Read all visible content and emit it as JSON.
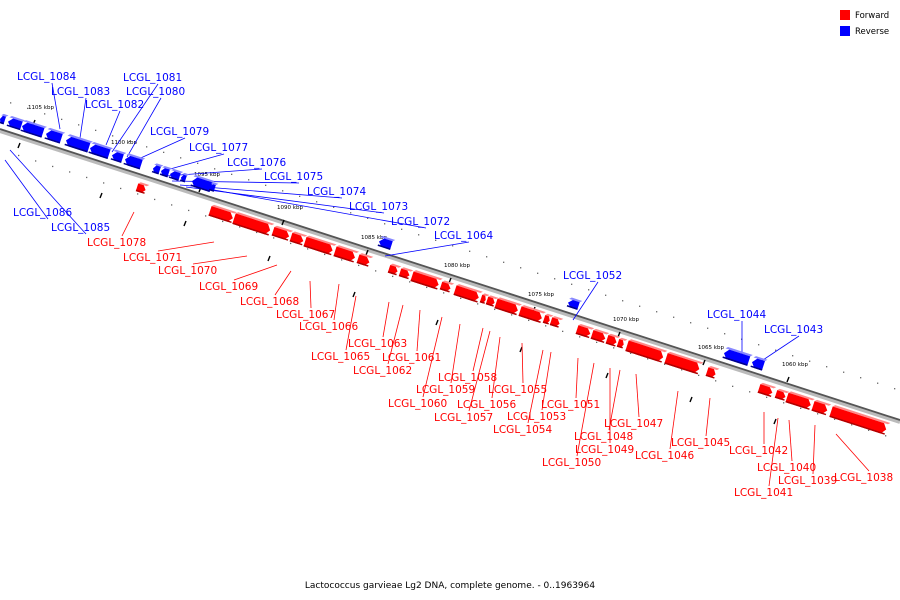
{
  "legend": [
    {
      "label": "Forward",
      "color": "#ff0000"
    },
    {
      "label": "Reverse",
      "color": "#0000ff"
    }
  ],
  "caption": "Lactococcus garvieae Lg2 DNA, complete genome. - 0..1963964",
  "ticks": [
    "1105 kbp",
    "1100 kbp",
    "1095 kbp",
    "1090 kbp",
    "1085 kbp",
    "1080 kbp",
    "1075 kbp",
    "1070 kbp",
    "1065 kbp",
    "1060 kbp"
  ],
  "genes": [
    {
      "name": "LCGL_1084",
      "strand": "reverse"
    },
    {
      "name": "LCGL_1083",
      "strand": "reverse"
    },
    {
      "name": "LCGL_1082",
      "strand": "reverse"
    },
    {
      "name": "LCGL_1081",
      "strand": "reverse"
    },
    {
      "name": "LCGL_1080",
      "strand": "reverse"
    },
    {
      "name": "LCGL_1079",
      "strand": "reverse"
    },
    {
      "name": "LCGL_1077",
      "strand": "reverse"
    },
    {
      "name": "LCGL_1076",
      "strand": "reverse"
    },
    {
      "name": "LCGL_1075",
      "strand": "reverse"
    },
    {
      "name": "LCGL_1074",
      "strand": "reverse"
    },
    {
      "name": "LCGL_1073",
      "strand": "reverse"
    },
    {
      "name": "LCGL_1072",
      "strand": "reverse"
    },
    {
      "name": "LCGL_1064",
      "strand": "reverse"
    },
    {
      "name": "LCGL_1052",
      "strand": "reverse"
    },
    {
      "name": "LCGL_1044",
      "strand": "reverse"
    },
    {
      "name": "LCGL_1043",
      "strand": "reverse"
    },
    {
      "name": "LCGL_1086",
      "strand": "reverse"
    },
    {
      "name": "LCGL_1085",
      "strand": "reverse"
    },
    {
      "name": "LCGL_1078",
      "strand": "forward"
    },
    {
      "name": "LCGL_1071",
      "strand": "forward"
    },
    {
      "name": "LCGL_1070",
      "strand": "forward"
    },
    {
      "name": "LCGL_1069",
      "strand": "forward"
    },
    {
      "name": "LCGL_1068",
      "strand": "forward"
    },
    {
      "name": "LCGL_1067",
      "strand": "forward"
    },
    {
      "name": "LCGL_1066",
      "strand": "forward"
    },
    {
      "name": "LCGL_1065",
      "strand": "forward"
    },
    {
      "name": "LCGL_1063",
      "strand": "forward"
    },
    {
      "name": "LCGL_1062",
      "strand": "forward"
    },
    {
      "name": "LCGL_1061",
      "strand": "forward"
    },
    {
      "name": "LCGL_1060",
      "strand": "forward"
    },
    {
      "name": "LCGL_1059",
      "strand": "forward"
    },
    {
      "name": "LCGL_1058",
      "strand": "forward"
    },
    {
      "name": "LCGL_1057",
      "strand": "forward"
    },
    {
      "name": "LCGL_1056",
      "strand": "forward"
    },
    {
      "name": "LCGL_1055",
      "strand": "forward"
    },
    {
      "name": "LCGL_1054",
      "strand": "forward"
    },
    {
      "name": "LCGL_1053",
      "strand": "forward"
    },
    {
      "name": "LCGL_1051",
      "strand": "forward"
    },
    {
      "name": "LCGL_1050",
      "strand": "forward"
    },
    {
      "name": "LCGL_1049",
      "strand": "forward"
    },
    {
      "name": "LCGL_1048",
      "strand": "forward"
    },
    {
      "name": "LCGL_1047",
      "strand": "forward"
    },
    {
      "name": "LCGL_1046",
      "strand": "forward"
    },
    {
      "name": "LCGL_1045",
      "strand": "forward"
    },
    {
      "name": "LCGL_1042",
      "strand": "forward"
    },
    {
      "name": "LCGL_1041",
      "strand": "forward"
    },
    {
      "name": "LCGL_1040",
      "strand": "forward"
    },
    {
      "name": "LCGL_1039",
      "strand": "forward"
    },
    {
      "name": "LCGL_1038",
      "strand": "forward"
    }
  ]
}
